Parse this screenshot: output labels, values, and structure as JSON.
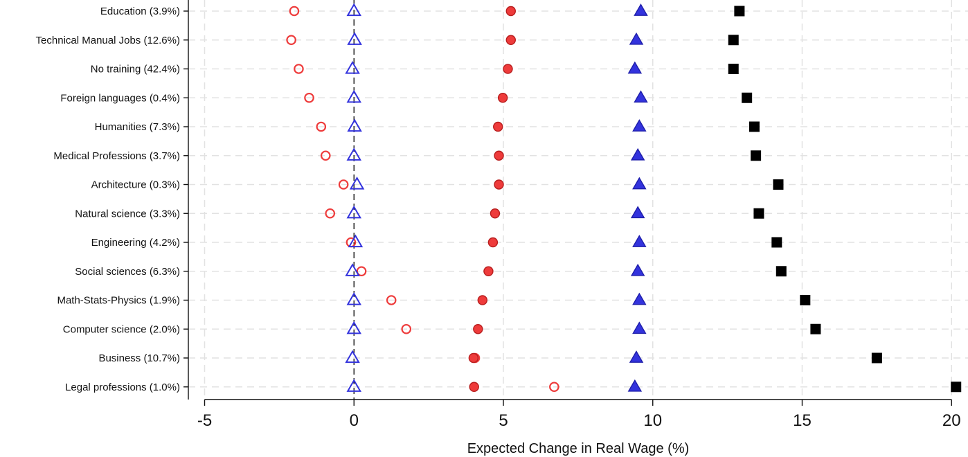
{
  "chart_data": {
    "type": "scatter",
    "title": "",
    "xlabel": "Expected Change in Real Wage (%)",
    "ylabel": "",
    "xlim": [
      -5,
      20
    ],
    "xticks": [
      -5,
      0,
      5,
      10,
      15,
      20
    ],
    "xtick_labels": [
      "-5",
      "0",
      "5",
      "10",
      "15",
      "20"
    ],
    "grid": true,
    "reference_line_x": 0,
    "categories": [
      "Education (3.9%)",
      "Technical Manual Jobs (12.6%)",
      "No training (42.4%)",
      "Foreign languages (0.4%)",
      "Humanities (7.3%)",
      "Medical Professions (3.7%)",
      "Architecture (0.3%)",
      "Natural science (3.3%)",
      "Engineering (4.2%)",
      "Social sciences (6.3%)",
      "Math-Stats-Physics (1.9%)",
      "Computer science (2.0%)",
      "Business (10.7%)",
      "Legal professions (1.0%)"
    ],
    "series": [
      {
        "marker": "hollow-circle",
        "color": "#ee3b3b",
        "values": [
          -2.0,
          -2.1,
          -1.85,
          -1.5,
          -1.1,
          -0.95,
          -0.35,
          -0.8,
          -0.1,
          0.25,
          1.25,
          1.75,
          4.05,
          6.7
        ]
      },
      {
        "marker": "hollow-triangle",
        "color": "#3333dd",
        "values": [
          0.0,
          0.02,
          -0.05,
          0.0,
          0.02,
          0.0,
          0.1,
          0.0,
          0.05,
          -0.05,
          0.0,
          0.0,
          -0.05,
          0.0
        ]
      },
      {
        "marker": "filled-circle",
        "color": "#ee3b3b",
        "values": [
          5.25,
          5.25,
          5.15,
          4.98,
          4.82,
          4.85,
          4.85,
          4.72,
          4.65,
          4.5,
          4.3,
          4.15,
          4.0,
          4.02
        ]
      },
      {
        "marker": "filled-triangle",
        "color": "#3333dd",
        "values": [
          9.6,
          9.45,
          9.4,
          9.6,
          9.55,
          9.5,
          9.55,
          9.5,
          9.55,
          9.5,
          9.55,
          9.55,
          9.45,
          9.4
        ]
      },
      {
        "marker": "filled-square",
        "color": "#000000",
        "values": [
          12.9,
          12.7,
          12.7,
          13.15,
          13.4,
          13.45,
          14.2,
          13.55,
          14.15,
          14.3,
          15.1,
          15.45,
          17.5,
          20.15
        ]
      }
    ]
  }
}
